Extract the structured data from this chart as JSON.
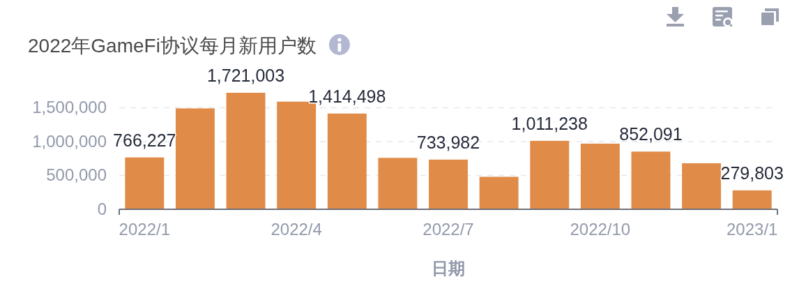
{
  "chart_data": {
    "type": "bar",
    "title": "2022年GameFi协议每月新用户数",
    "xlabel": "日期",
    "categories": [
      "2022/1",
      null,
      null,
      "2022/4",
      null,
      null,
      "2022/7",
      null,
      null,
      "2022/10",
      null,
      null,
      "2023/1"
    ],
    "values": [
      766227,
      1490000,
      1721003,
      1590000,
      1414498,
      760000,
      733982,
      480000,
      1011238,
      970000,
      852091,
      680000,
      279803
    ],
    "value_labels": [
      "766,227",
      null,
      "1,721,003",
      null,
      "1,414,498",
      null,
      "733,982",
      null,
      "1,011,238",
      null,
      "852,091",
      null,
      "279,803"
    ],
    "color": "#e08b47",
    "ylim": [
      0,
      1721003
    ],
    "yticks": [
      0,
      {
        "value": 500000,
        "label": "500,000"
      },
      {
        "value": 1000000,
        "label": "1,000,000"
      },
      {
        "value": 1500000,
        "label": "1,500,000"
      }
    ],
    "grid": "y"
  }
}
